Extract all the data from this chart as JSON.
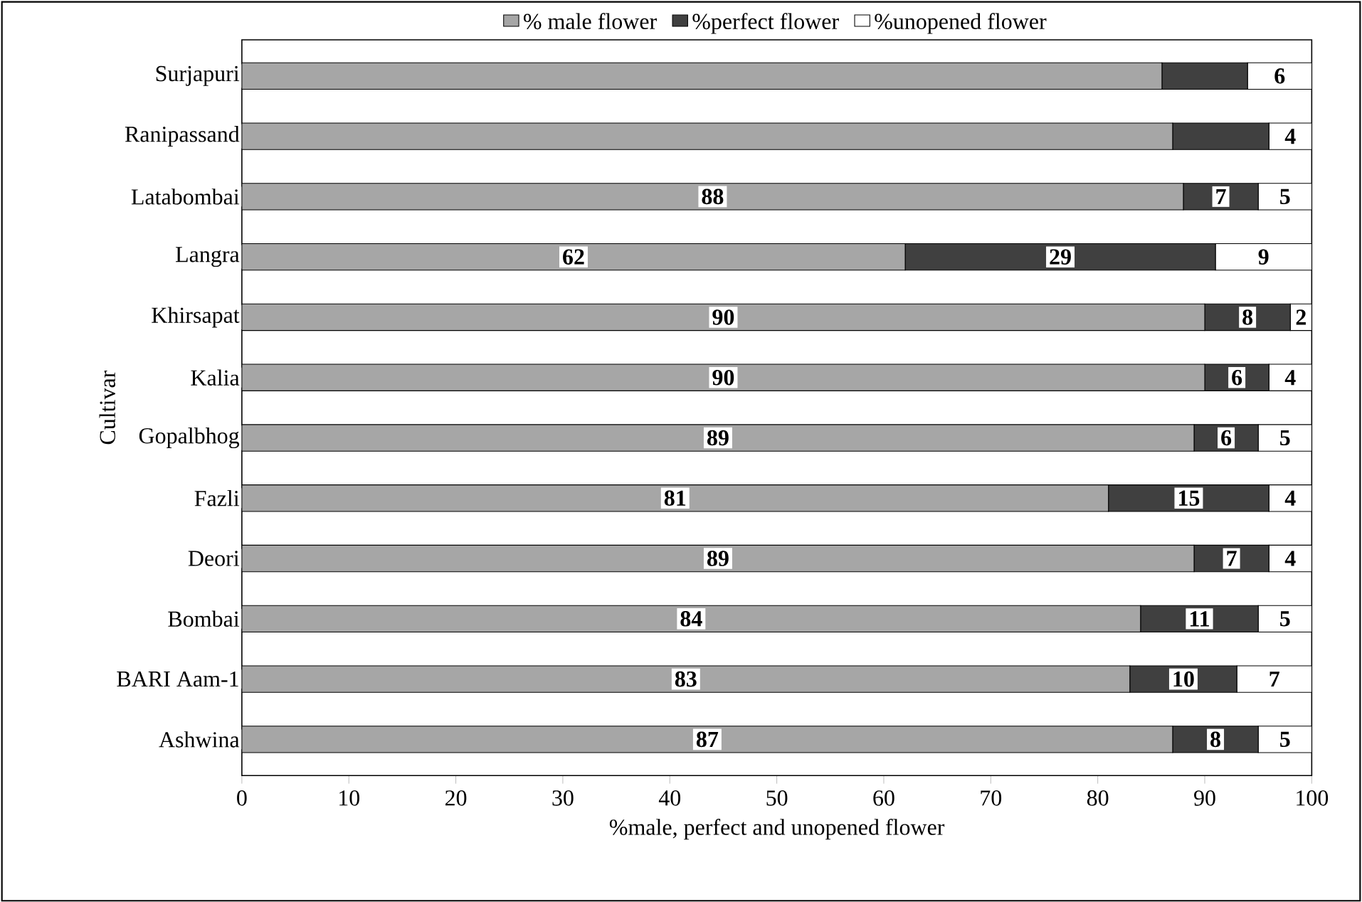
{
  "chart_data": {
    "type": "bar",
    "orientation": "horizontal",
    "stacked": true,
    "categories": [
      "Surjapuri",
      "Ranipassand",
      "Latabombai",
      "Langra",
      "Khirsapat",
      "Kalia",
      "Gopalbhog",
      "Fazli",
      "Deori",
      "Bombai",
      "BARI Aam-1",
      "Ashwina"
    ],
    "series": [
      {
        "name": "% male flower",
        "color": "#a6a6a6",
        "values": [
          86,
          87,
          88,
          62,
          90,
          90,
          89,
          81,
          89,
          84,
          83,
          87
        ],
        "value_labels": [
          null,
          null,
          "88",
          "62",
          "90",
          "90",
          "89",
          "81",
          "89",
          "84",
          "83",
          "87"
        ]
      },
      {
        "name": "%perfect flower",
        "color": "#404040",
        "values": [
          8,
          9,
          7,
          29,
          8,
          6,
          6,
          15,
          7,
          11,
          10,
          8
        ],
        "value_labels": [
          null,
          null,
          "7",
          "29",
          "8",
          "6",
          "6",
          "15",
          "7",
          "11",
          "10",
          "8"
        ]
      },
      {
        "name": "%unopened flower",
        "color": "#ffffff",
        "values": [
          6,
          4,
          5,
          9,
          2,
          4,
          5,
          4,
          4,
          5,
          7,
          5
        ],
        "value_labels": [
          "6",
          "4",
          "5",
          "9",
          "2",
          "4",
          "5",
          "4",
          "4",
          "5",
          "7",
          "5"
        ]
      }
    ],
    "xlim": [
      0,
      100
    ],
    "xticks": [
      0,
      10,
      20,
      30,
      40,
      50,
      60,
      70,
      80,
      90,
      100
    ],
    "xlabel": "%male, perfect and unopened flower",
    "ylabel": "Cultivar",
    "legend": "top",
    "grid": false
  }
}
